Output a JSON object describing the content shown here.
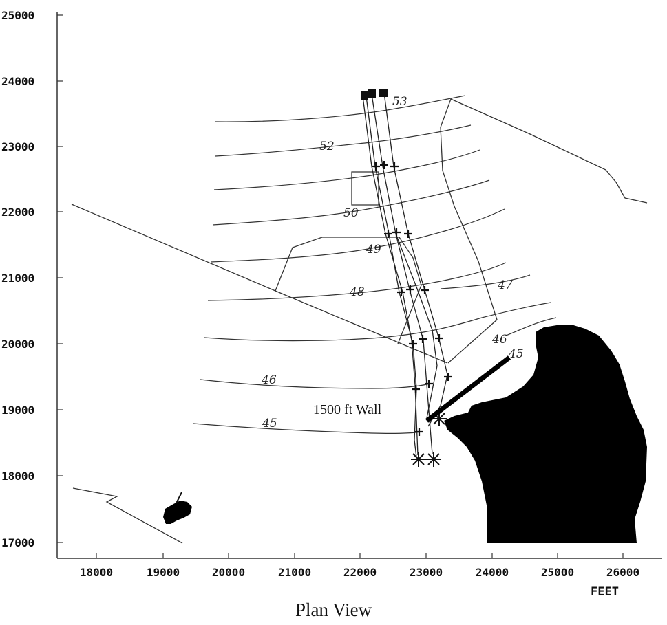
{
  "title": "Plan View",
  "unit_label": "FEET",
  "wall_label": "1500 ft Wall",
  "x_ticks": [
    "18000",
    "19000",
    "20000",
    "21000",
    "22000",
    "23000",
    "24000",
    "25000",
    "26000"
  ],
  "y_ticks": [
    "25000",
    "24000",
    "23000",
    "22000",
    "21000",
    "20000",
    "19000",
    "18000",
    "17000"
  ],
  "contour_labels": [
    "53",
    "52",
    "50",
    "49",
    "48",
    "47",
    "46",
    "45",
    "46",
    "45"
  ],
  "colors": {
    "ink": "#111111",
    "fill": "#000000",
    "background": "#ffffff"
  }
}
